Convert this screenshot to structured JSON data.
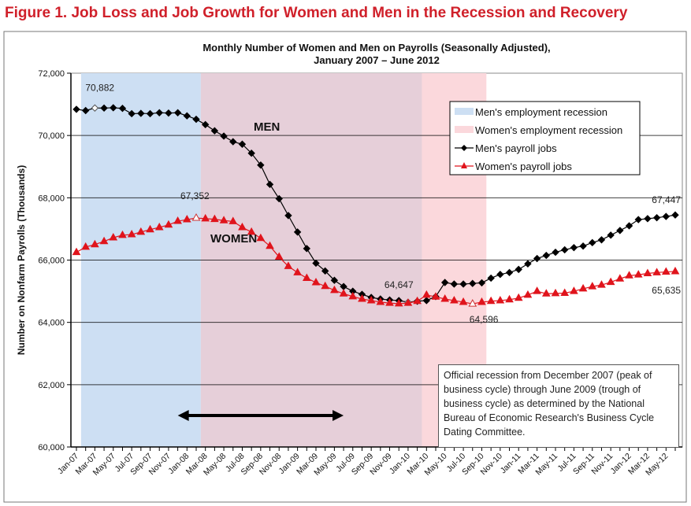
{
  "figure_title": "Figure 1. Job Loss and Job Growth for Women and Men in the Recession and Recovery",
  "chart_data": {
    "type": "line",
    "title": [
      "Monthly Number of Women and Men on Payrolls (Seasonally Adjusted),",
      "January 2007 – June 2012"
    ],
    "ylabel": "Number on Nonfarm Payrolls (Thousands)",
    "xlabel": "",
    "ylim": [
      60000,
      72000
    ],
    "yticks": [
      "60,000",
      "62,000",
      "64,000",
      "66,000",
      "68,000",
      "70,000",
      "72,000"
    ],
    "grid": "horizontal",
    "legend_position": "top-right",
    "x_tick_labels": [
      "Jan-07",
      "Mar-07",
      "May-07",
      "Jul-07",
      "Sep-07",
      "Nov-07",
      "Jan-08",
      "Mar-08",
      "May-08",
      "Jul-08",
      "Sep-08",
      "Nov-08",
      "Jan-09",
      "Mar-09",
      "May-09",
      "Jul-09",
      "Sep-09",
      "Nov-09",
      "Jan-10",
      "Mar-10",
      "May-10",
      "Jul-10",
      "Sep-10",
      "Nov-10",
      "Jan-11",
      "Mar-11",
      "May-11",
      "Jul-11",
      "Sep-11",
      "Nov-11",
      "Jan-12",
      "Mar-12",
      "May-12"
    ],
    "x_start": "Jan-07",
    "x_end": "Jun-12",
    "bands": [
      {
        "name": "Men's employment recession",
        "from": "Feb-07",
        "to": "Feb-10",
        "color": "#cddff3"
      },
      {
        "name": "Women's employment recession",
        "from": "Mar-08",
        "to": "Sep-10",
        "color": "#fbd8dc"
      }
    ],
    "overlap_color": "#e6cfd9",
    "series": [
      {
        "name": "Men's payroll jobs",
        "color": "#000000",
        "marker": "diamond",
        "values": [
          70840,
          70800,
          70882,
          70880,
          70890,
          70870,
          70700,
          70710,
          70700,
          70730,
          70720,
          70730,
          70630,
          70520,
          70350,
          70150,
          69980,
          69800,
          69720,
          69430,
          69050,
          68430,
          67970,
          67430,
          66900,
          66370,
          65900,
          65650,
          65350,
          65150,
          65000,
          64900,
          64800,
          64750,
          64720,
          64700,
          64647,
          64680,
          64700,
          64830,
          65280,
          65230,
          65230,
          65250,
          65270,
          65420,
          65540,
          65600,
          65700,
          65880,
          66050,
          66150,
          66250,
          66330,
          66400,
          66450,
          66560,
          66650,
          66800,
          66950,
          67100,
          67300,
          67330,
          67360,
          67400,
          67447
        ]
      },
      {
        "name": "Women's payroll jobs",
        "color": "#e0141c",
        "marker": "triangle",
        "values": [
          66250,
          66420,
          66500,
          66600,
          66720,
          66800,
          66820,
          66900,
          66980,
          67050,
          67130,
          67250,
          67300,
          67352,
          67330,
          67310,
          67270,
          67240,
          67050,
          66900,
          66700,
          66450,
          66100,
          65800,
          65600,
          65420,
          65280,
          65160,
          65030,
          64920,
          64830,
          64750,
          64700,
          64650,
          64620,
          64600,
          64620,
          64680,
          64880,
          64820,
          64750,
          64700,
          64650,
          64596,
          64650,
          64680,
          64700,
          64730,
          64780,
          64880,
          65000,
          64920,
          64930,
          64940,
          65000,
          65080,
          65150,
          65200,
          65290,
          65400,
          65500,
          65530,
          65570,
          65600,
          65620,
          65635
        ]
      }
    ],
    "annotations": [
      {
        "text": "70,882",
        "series": 0,
        "index": 2
      },
      {
        "text": "67,352",
        "series": 1,
        "index": 13
      },
      {
        "text": "64,647",
        "series": 0,
        "index": 36
      },
      {
        "text": "64,596",
        "series": 1,
        "index": 43
      },
      {
        "text": "67,447",
        "series": 0,
        "index": 65
      },
      {
        "text": "65,635",
        "series": 1,
        "index": 65
      }
    ],
    "series_labels": [
      "MEN",
      "WOMEN"
    ],
    "official_recession_arrow": {
      "from": "Dec-07",
      "to": "Jun-09"
    },
    "note": "Official recession from December 2007 (peak of business cycle) through June 2009 (trough of business cycle) as determined by the National Bureau of Economic Research's Business Cycle Dating Committee."
  }
}
